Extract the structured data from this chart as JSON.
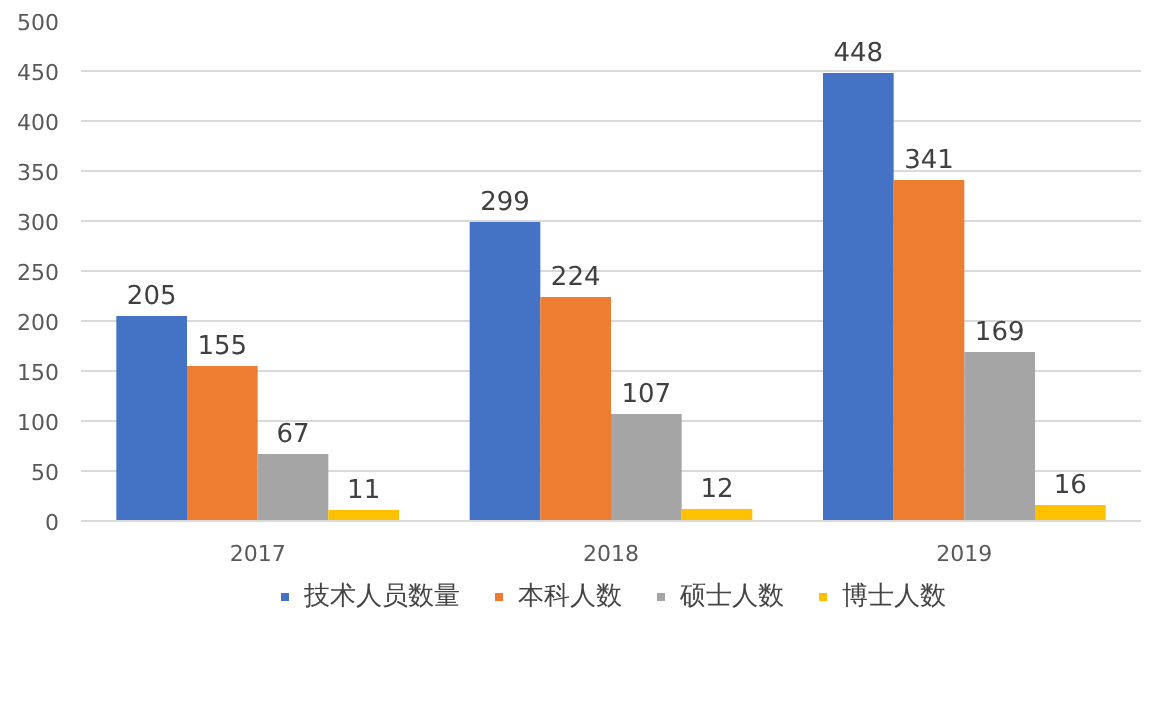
{
  "chart_data": {
    "type": "bar",
    "categories": [
      "2017",
      "2018",
      "2019"
    ],
    "series": [
      {
        "name": "技术人员数量",
        "color": "#4472c4",
        "values": [
          205,
          299,
          448
        ]
      },
      {
        "name": "本科人数",
        "color": "#ed7d31",
        "values": [
          155,
          224,
          341
        ]
      },
      {
        "name": "硕士人数",
        "color": "#a5a5a5",
        "values": [
          67,
          107,
          169
        ]
      },
      {
        "name": "博士人数",
        "color": "#ffc000",
        "values": [
          11,
          12,
          16
        ]
      }
    ],
    "ylim": [
      0,
      500
    ],
    "yticks": [
      0,
      50,
      100,
      150,
      200,
      250,
      300,
      350,
      400,
      450,
      500
    ],
    "grid": "y",
    "legend": "bottom",
    "data_labels": true
  }
}
